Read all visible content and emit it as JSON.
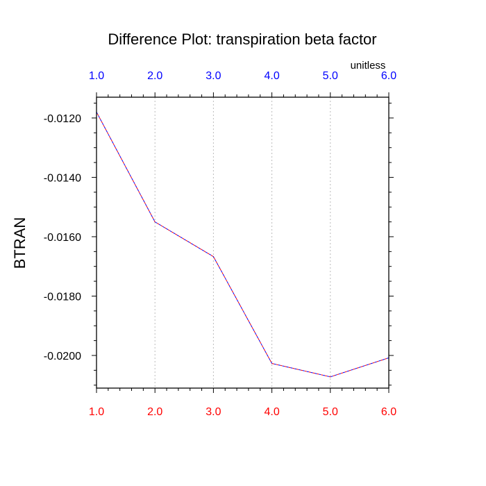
{
  "chart_data": {
    "type": "line",
    "title": "Difference Plot: transpiration beta factor",
    "units_label": "unitless",
    "xlabel": "",
    "ylabel": "BTRAN",
    "x": [
      1.0,
      2.0,
      3.0,
      4.0,
      5.0,
      6.0
    ],
    "x_tick_labels": [
      "1.0",
      "2.0",
      "3.0",
      "4.0",
      "5.0",
      "6.0"
    ],
    "xlim": [
      1.0,
      6.0
    ],
    "ylim": [
      -0.0211,
      -0.0113
    ],
    "y_ticks": [
      -0.012,
      -0.014,
      -0.016,
      -0.018,
      -0.02
    ],
    "y_tick_labels": [
      "-0.0120",
      "-0.0140",
      "-0.0160",
      "-0.0180",
      "-0.0200"
    ],
    "grid": "vertical dotted at x ticks",
    "series": [
      {
        "values": [
          -0.0118,
          -0.0155,
          -0.01667,
          -0.02027,
          -0.02072,
          -0.02008
        ]
      }
    ],
    "colors": {
      "line_primary": "#0000ff",
      "line_secondary": "#ff0000",
      "top_axis_labels": "#0000ff",
      "bottom_axis_labels": "#ff0000",
      "left_axis_labels": "#000000",
      "grid": "#bbbbbb",
      "frame": "#000000"
    }
  }
}
